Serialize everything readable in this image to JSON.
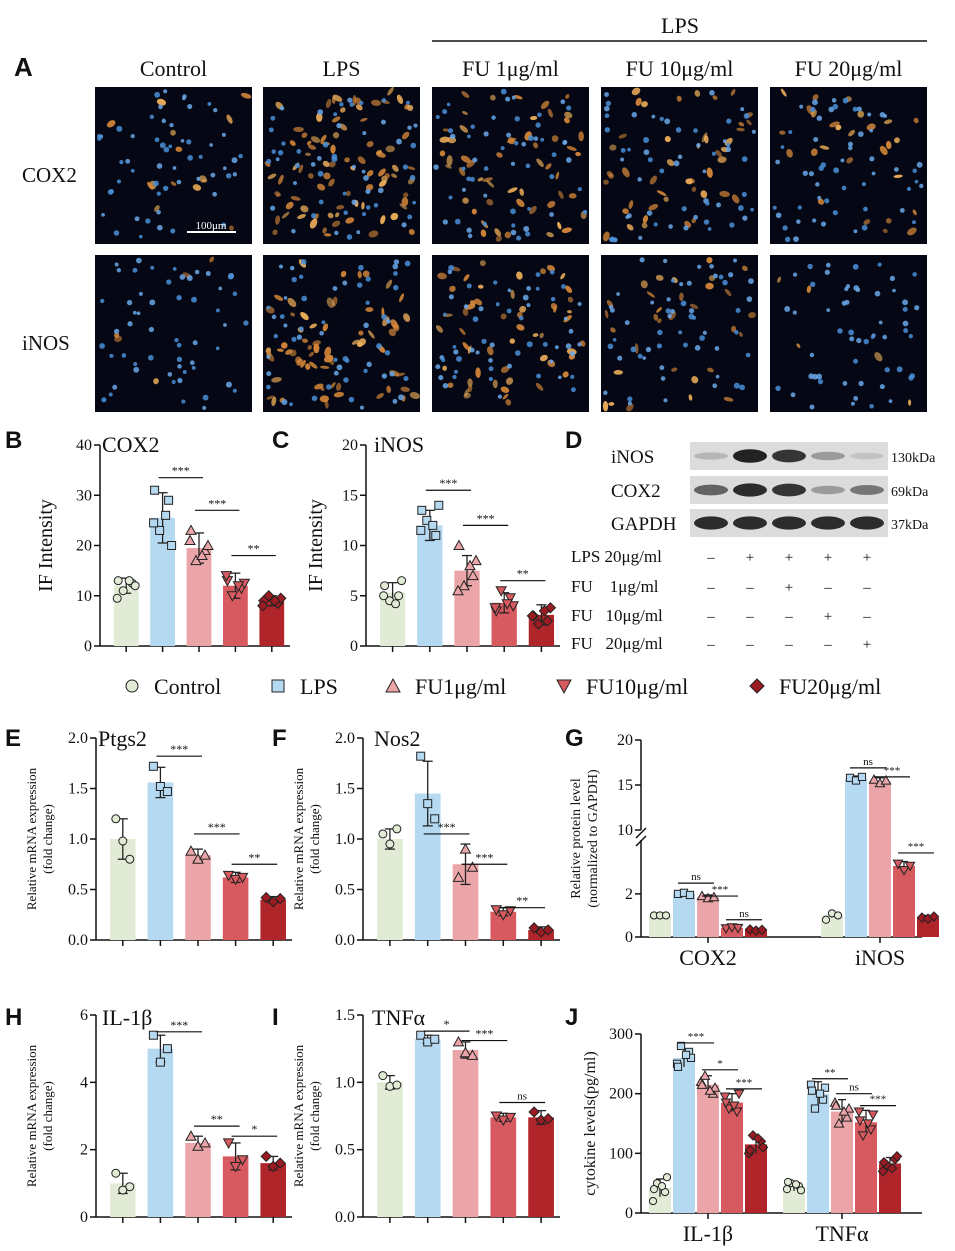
{
  "colors": {
    "control": "#e2ebd6",
    "lps": "#b4d9f1",
    "fu1": "#eba5a8",
    "fu10": "#d65a5f",
    "fu20": "#b0252a",
    "marker_fu20": "#9a1c22"
  },
  "panelA": {
    "label": "A",
    "lps_bracket": "LPS",
    "columns": [
      "Control",
      "LPS",
      "FU 1μg/ml",
      "FU 10μg/ml",
      "FU 20μg/ml"
    ],
    "rows": [
      "COX2",
      "iNOS"
    ],
    "scale_bar": "100μm",
    "orange_level": [
      [
        0.15,
        0.95,
        0.6,
        0.5,
        0.3
      ],
      [
        0.05,
        0.75,
        0.6,
        0.35,
        0.05
      ]
    ]
  },
  "panelD": {
    "label": "D",
    "bands": [
      {
        "name": "iNOS",
        "size": "130kDa",
        "intensity": [
          0.15,
          0.95,
          0.85,
          0.3,
          0.08
        ]
      },
      {
        "name": "COX2",
        "size": "69kDa",
        "intensity": [
          0.6,
          0.9,
          0.85,
          0.3,
          0.5
        ]
      },
      {
        "name": "GAPDH",
        "size": "37kDa",
        "intensity": [
          0.9,
          0.9,
          0.9,
          0.9,
          0.9
        ]
      }
    ],
    "conditions": [
      {
        "text": "LPS 20μg/ml",
        "signs": [
          "–",
          "+",
          "+",
          "+",
          "+"
        ]
      },
      {
        "text": "FU    1μg/ml",
        "signs": [
          "–",
          "–",
          "+",
          "–",
          "–"
        ]
      },
      {
        "text": "FU   10μg/ml",
        "signs": [
          "–",
          "–",
          "–",
          "+",
          "–"
        ]
      },
      {
        "text": "FU   20μg/ml",
        "signs": [
          "–",
          "–",
          "–",
          "–",
          "+"
        ]
      }
    ]
  },
  "legend": [
    "Control",
    "LPS",
    "FU1μg/ml",
    "FU10μg/ml",
    "FU20μg/ml"
  ],
  "chart_data": [
    {
      "id": "B",
      "type": "bar",
      "title": "COX2",
      "ylabel": "IF Intensity",
      "categories": [
        "Control",
        "LPS",
        "FU1μg/ml",
        "FU10μg/ml",
        "FU20μg/ml"
      ],
      "values": [
        12,
        25.5,
        19.5,
        12,
        9
      ],
      "errors": [
        1.5,
        5,
        3,
        2.5,
        1
      ],
      "points": [
        [
          13,
          12.5,
          11,
          12,
          9.5,
          13
        ],
        [
          31,
          29,
          23,
          20,
          24.5,
          26
        ],
        [
          23,
          19,
          17,
          20,
          21,
          18
        ],
        [
          13,
          11.5,
          10,
          12.5,
          14,
          12
        ],
        [
          9,
          8.5,
          10,
          9.5,
          8,
          9
        ]
      ],
      "ylim": [
        0,
        40
      ],
      "yticks": [
        0,
        10,
        20,
        30,
        40
      ],
      "sig": [
        {
          "a": 1,
          "b": 2,
          "y": 33.5,
          "text": "***"
        },
        {
          "a": 2,
          "b": 3,
          "y": 27,
          "text": "***"
        },
        {
          "a": 3,
          "b": 4,
          "y": 18,
          "text": "**"
        }
      ]
    },
    {
      "id": "C",
      "type": "bar",
      "title": "iNOS",
      "ylabel": "IF Intensity",
      "categories": [
        "Control",
        "LPS",
        "FU1μg/ml",
        "FU10μg/ml",
        "FU20μg/ml"
      ],
      "values": [
        5.3,
        12,
        7.5,
        4.3,
        3.1
      ],
      "errors": [
        1,
        1.5,
        1.5,
        1,
        1
      ],
      "points": [
        [
          6,
          5,
          4.5,
          6.5,
          5,
          4.2
        ],
        [
          13.5,
          11,
          12.5,
          14,
          11.5,
          12
        ],
        [
          10,
          7,
          6,
          8.5,
          5.5,
          8
        ],
        [
          3.5,
          4.8,
          5.5,
          4,
          3.8,
          4.2
        ],
        [
          3,
          2.5,
          2.2,
          3.8,
          3,
          3.5
        ]
      ],
      "ylim": [
        0,
        20
      ],
      "yticks": [
        0,
        5,
        10,
        15,
        20
      ],
      "sig": [
        {
          "a": 1,
          "b": 2,
          "y": 15.5,
          "text": "***"
        },
        {
          "a": 2,
          "b": 3,
          "y": 12,
          "text": "***"
        },
        {
          "a": 3,
          "b": 4,
          "y": 6.5,
          "text": "**"
        }
      ]
    },
    {
      "id": "E",
      "type": "bar",
      "title": "Ptgs2",
      "ylabel": "Relative mRNA expression (fold change)",
      "categories": [
        "Control",
        "LPS",
        "FU1μg/ml",
        "FU10μg/ml",
        "FU20μg/ml"
      ],
      "values": [
        1.0,
        1.56,
        0.84,
        0.62,
        0.4
      ],
      "errors": [
        0.2,
        0.15,
        0.06,
        0.05,
        0.03
      ],
      "points": [
        [
          1.2,
          0.98,
          0.8
        ],
        [
          1.72,
          1.52,
          1.47
        ],
        [
          0.88,
          0.8,
          0.84
        ],
        [
          0.64,
          0.6,
          0.62
        ],
        [
          0.42,
          0.38,
          0.41
        ]
      ],
      "ylim": [
        0,
        2.0
      ],
      "yticks": [
        0.0,
        0.5,
        1.0,
        1.5,
        2.0
      ],
      "decimals": 1,
      "sig": [
        {
          "a": 1,
          "b": 2,
          "y": 1.82,
          "text": "***"
        },
        {
          "a": 2,
          "b": 3,
          "y": 1.05,
          "text": "***"
        },
        {
          "a": 3,
          "b": 4,
          "y": 0.75,
          "text": "**"
        }
      ]
    },
    {
      "id": "F",
      "type": "bar",
      "title": "Nos2",
      "ylabel": "Relative mRNA expression (fold change)",
      "categories": [
        "Control",
        "LPS",
        "FU1μg/ml",
        "FU10μg/ml",
        "FU20μg/ml"
      ],
      "values": [
        1.0,
        1.45,
        0.75,
        0.28,
        0.1
      ],
      "errors": [
        0.1,
        0.32,
        0.2,
        0.04,
        0.03
      ],
      "points": [
        [
          1.05,
          0.95,
          1.1
        ],
        [
          1.82,
          1.35,
          1.2
        ],
        [
          0.62,
          0.9,
          0.72
        ],
        [
          0.3,
          0.25,
          0.29
        ],
        [
          0.12,
          0.08,
          0.1
        ]
      ],
      "ylim": [
        0,
        2.0
      ],
      "yticks": [
        0.0,
        0.5,
        1.0,
        1.5,
        2.0
      ],
      "decimals": 1,
      "sig": [
        {
          "a": 1,
          "b": 2,
          "y": 1.05,
          "text": "***"
        },
        {
          "a": 2,
          "b": 3,
          "y": 0.75,
          "text": "***"
        },
        {
          "a": 3,
          "b": 4,
          "y": 0.32,
          "text": "**"
        }
      ]
    },
    {
      "id": "G",
      "type": "bar",
      "ylabel": "Relative protein level (normalized to GAPDH)",
      "categories": [
        "COX2",
        "iNOS"
      ],
      "broken_axis": {
        "lower": [
          0,
          4.5
        ],
        "upper": [
          10,
          20
        ]
      },
      "yticks": [
        0,
        2,
        10,
        15,
        20
      ],
      "series": [
        {
          "values": [
            1.0,
            1.0
          ],
          "errors": [
            0.05,
            0.1
          ],
          "points": [
            [
              1.0,
              1.0,
              1.0
            ],
            [
              0.8,
              1.1,
              1.0
            ]
          ]
        },
        {
          "values": [
            2.0,
            15.7
          ],
          "errors": [
            0.05,
            0.3
          ],
          "points": [
            [
              2.0,
              2.05,
              1.95
            ],
            [
              15.8,
              15.5,
              15.9
            ]
          ]
        },
        {
          "values": [
            1.85,
            15.4
          ],
          "errors": [
            0.1,
            0.4
          ],
          "points": [
            [
              1.9,
              1.8,
              1.85
            ],
            [
              15.6,
              15.2,
              15.5
            ]
          ]
        },
        {
          "values": [
            0.42,
            3.3
          ],
          "errors": [
            0.05,
            0.2
          ],
          "points": [
            [
              0.4,
              0.45,
              0.42
            ],
            [
              3.4,
              3.1,
              3.3
            ]
          ]
        },
        {
          "values": [
            0.33,
            0.9
          ],
          "errors": [
            0.04,
            0.1
          ],
          "points": [
            [
              0.35,
              0.3,
              0.33
            ],
            [
              0.9,
              0.85,
              0.95
            ]
          ]
        }
      ],
      "sig": [
        {
          "group": 0,
          "a": 1,
          "b": 2,
          "y": 2.5,
          "text": "ns"
        },
        {
          "group": 0,
          "a": 2,
          "b": 3,
          "y": 1.9,
          "text": "***"
        },
        {
          "group": 0,
          "a": 3,
          "b": 4,
          "y": 0.8,
          "text": "ns"
        },
        {
          "group": 1,
          "a": 1,
          "b": 2,
          "y": 16.9,
          "text": "ns"
        },
        {
          "group": 1,
          "a": 2,
          "b": 3,
          "y": 15.9,
          "text": "***"
        },
        {
          "group": 1,
          "a": 3,
          "b": 4,
          "y": 3.9,
          "text": "***"
        }
      ]
    },
    {
      "id": "H",
      "type": "bar",
      "title": "IL-1β",
      "ylabel": "Relative mRNA expression (fold change)",
      "categories": [
        "Control",
        "LPS",
        "FU1μg/ml",
        "FU10μg/ml",
        "FU20μg/ml"
      ],
      "values": [
        1.0,
        5.0,
        2.2,
        1.8,
        1.6
      ],
      "errors": [
        0.3,
        0.4,
        0.2,
        0.4,
        0.2
      ],
      "points": [
        [
          1.3,
          0.8,
          0.9
        ],
        [
          5.4,
          4.6,
          5.0
        ],
        [
          2.4,
          2.1,
          2.2
        ],
        [
          2.2,
          1.5,
          1.7
        ],
        [
          1.8,
          1.5,
          1.6
        ]
      ],
      "ylim": [
        0,
        6
      ],
      "yticks": [
        0,
        2,
        4,
        6
      ],
      "sig": [
        {
          "a": 1,
          "b": 2,
          "y": 5.5,
          "text": "***"
        },
        {
          "a": 2,
          "b": 3,
          "y": 2.7,
          "text": "**"
        },
        {
          "a": 3,
          "b": 4,
          "y": 2.4,
          "text": "*"
        }
      ]
    },
    {
      "id": "I",
      "type": "bar",
      "title": "TNFα",
      "ylabel": "Relative mRNA expression (fold change)",
      "categories": [
        "Control",
        "LPS",
        "FU1μg/ml",
        "FU10μg/ml",
        "FU20μg/ml"
      ],
      "values": [
        1.0,
        1.32,
        1.24,
        0.74,
        0.74
      ],
      "errors": [
        0.05,
        0.03,
        0.06,
        0.03,
        0.05
      ],
      "points": [
        [
          1.05,
          0.97,
          0.98
        ],
        [
          1.35,
          1.3,
          1.32
        ],
        [
          1.3,
          1.22,
          1.2
        ],
        [
          0.75,
          0.72,
          0.74
        ],
        [
          0.78,
          0.72,
          0.73
        ]
      ],
      "ylim": [
        0,
        1.5
      ],
      "yticks": [
        0.0,
        0.5,
        1.0,
        1.5
      ],
      "decimals": 1,
      "sig": [
        {
          "a": 1,
          "b": 2,
          "y": 1.38,
          "text": "*"
        },
        {
          "a": 2,
          "b": 3,
          "y": 1.31,
          "text": "***"
        },
        {
          "a": 3,
          "b": 4,
          "y": 0.85,
          "text": "ns"
        }
      ]
    },
    {
      "id": "J",
      "type": "bar",
      "ylabel": "cytokine levels(pg/ml)",
      "categories": [
        "IL-1β",
        "TNFα"
      ],
      "ylim": [
        0,
        300
      ],
      "yticks": [
        0,
        100,
        200,
        300
      ],
      "series": [
        {
          "values": [
            42,
            45
          ],
          "errors": [
            15,
            8
          ],
          "points": [
            [
              20,
              35,
              50,
              60,
              40,
              45
            ],
            [
              40,
              45,
              50,
              38,
              52,
              48
            ]
          ]
        },
        {
          "values": [
            260,
            200
          ],
          "errors": [
            15,
            20
          ],
          "points": [
            [
              250,
              270,
              280,
              260,
              245,
              265
            ],
            [
              215,
              190,
              175,
              210,
              205,
              200
            ]
          ]
        },
        {
          "values": [
            215,
            170
          ],
          "errors": [
            15,
            20
          ],
          "points": [
            [
              220,
              200,
              230,
              210,
              215,
              205
            ],
            [
              185,
              160,
              150,
              175,
              180,
              170
            ]
          ]
        },
        {
          "values": [
            185,
            152
          ],
          "errors": [
            15,
            20
          ],
          "points": [
            [
              195,
              170,
              175,
              200,
              185,
              180
            ],
            [
              170,
              140,
              130,
              165,
              155,
              150
            ]
          ]
        },
        {
          "values": [
            115,
            83
          ],
          "errors": [
            15,
            10
          ],
          "points": [
            [
              100,
              120,
              130,
              110,
              105,
              125
            ],
            [
              70,
              90,
              80,
              95,
              85,
              75
            ]
          ]
        }
      ],
      "sig": [
        {
          "group": 0,
          "a": 1,
          "b": 2,
          "y": 285,
          "text": "***"
        },
        {
          "group": 0,
          "a": 2,
          "b": 3,
          "y": 240,
          "text": "*"
        },
        {
          "group": 0,
          "a": 3,
          "b": 4,
          "y": 208,
          "text": "***"
        },
        {
          "group": 1,
          "a": 1,
          "b": 2,
          "y": 225,
          "text": "**"
        },
        {
          "group": 1,
          "a": 2,
          "b": 3,
          "y": 200,
          "text": "ns"
        },
        {
          "group": 1,
          "a": 3,
          "b": 4,
          "y": 180,
          "text": "***"
        }
      ]
    }
  ]
}
